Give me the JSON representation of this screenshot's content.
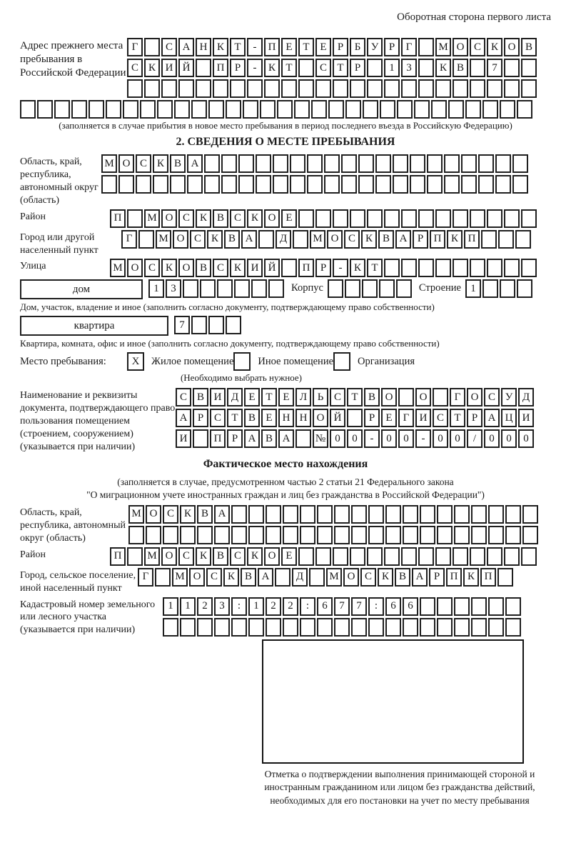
{
  "colors": {
    "ink": "#1f1f1f",
    "background": "#ffffff"
  },
  "page": {
    "back_note": "Оборотная сторона первого листа"
  },
  "prev_address": {
    "label": "Адрес прежнего места пребывания в Российской Федерации",
    "rows": [
      {
        "count": 24,
        "chars": "Г САНКТ-ПЕТЕРБУРГ МОСКОВ"
      },
      {
        "count": 24,
        "chars": "СКИЙ ПР-КТ СТР 13 КВ 7"
      },
      {
        "count": 24,
        "chars": ""
      }
    ],
    "full_row": {
      "count": 30,
      "chars": ""
    },
    "caption": "(заполняется в случае прибытия в новое место пребывания в период последнего въезда в Российскую Федерацию)"
  },
  "section2": {
    "title": "2. СВЕДЕНИЯ О МЕСТЕ ПРЕБЫВАНИЯ",
    "oblast": {
      "label": "Область, край, республика, автономный округ (область)",
      "rows": [
        {
          "count": 25,
          "chars": "МОСКВА"
        },
        {
          "count": 25,
          "chars": ""
        }
      ]
    },
    "raion": {
      "label": "Район",
      "row": {
        "count": 25,
        "chars": "П МОСКВСКОЕ"
      }
    },
    "gorod": {
      "label": "Город или другой населенный пункт",
      "row": {
        "count": 24,
        "chars": "Г МОСКВА Д МОСКВАРПКП"
      }
    },
    "ulitsa": {
      "label": "Улица",
      "row": {
        "count": 25,
        "chars": "МОСКОВСКИЙ ПР-КТ"
      }
    },
    "dom": {
      "box_label": "дом",
      "cells": {
        "count": 8,
        "chars": "13"
      },
      "korpus_label": "Корпус",
      "korpus_cells": {
        "count": 5,
        "chars": ""
      },
      "stroenie_label": "Строение",
      "stroenie_cells": {
        "count": 4,
        "chars": "1"
      }
    },
    "dom_caption": "Дом, участок, владение и иное (заполнить согласно документу, подтверждающему право собственности)",
    "kvartira": {
      "box_label": "квартира",
      "cells": {
        "count": 4,
        "chars": "7"
      }
    },
    "kvartira_caption": "Квартира, комната, офис и иное (заполнить согласно документу, подтверждающему право собственности)",
    "stay_type": {
      "label": "Место пребывания:",
      "options": [
        {
          "box": "X",
          "label": "Жилое помещение"
        },
        {
          "box": "",
          "label": "Иное помещение"
        },
        {
          "box": "",
          "label": "Организация"
        }
      ],
      "hint": "(Необходимо выбрать нужное)"
    },
    "document": {
      "label": "Наименование и реквизиты документа, подтверждающего право пользования помещением (строением, сооружением) (указывается при наличии)",
      "rows": [
        {
          "count": 21,
          "chars": "СВИДЕТЕЛЬСТВО О ГОСУД"
        },
        {
          "count": 21,
          "chars": "АРСТВЕННОЙ РЕГИСТРАЦИ"
        },
        {
          "count": 21,
          "chars": "И ПРАВА №00-00-00/000"
        }
      ]
    }
  },
  "fact": {
    "title": "Фактическое место нахождения",
    "caption1": "(заполняется в случае, предусмотренном частью 2 статьи 21 Федерального закона",
    "caption2": "\"О миграционном учете иностранных граждан и лиц без гражданства в Российской Федерации\")",
    "oblast": {
      "label": "Область, край, республика, автономный округ (область)",
      "rows": [
        {
          "count": 24,
          "chars": "МОСКВА"
        },
        {
          "count": 24,
          "chars": ""
        }
      ]
    },
    "raion": {
      "label": "Район",
      "row": {
        "count": 25,
        "chars": "П МОСКВСКОЕ"
      }
    },
    "gorod": {
      "label": "Город, сельское поселение, иной населенный пункт",
      "row": {
        "count": 22,
        "chars": "Г МОСКВА Д МОСКВАРПКП"
      }
    },
    "kadastr": {
      "label": "Кадастровый номер земельного или лесного участка (указывается при наличии)",
      "rows": [
        {
          "count": 21,
          "chars": "1123:122:677:66"
        },
        {
          "count": 21,
          "chars": ""
        }
      ]
    },
    "stamp_caption": "Отметка о подтверждении выполнения принимающей стороной и иностранным гражданином или лицом без гражданства действий, необходимых для его постановки на учет по месту пребывания"
  }
}
